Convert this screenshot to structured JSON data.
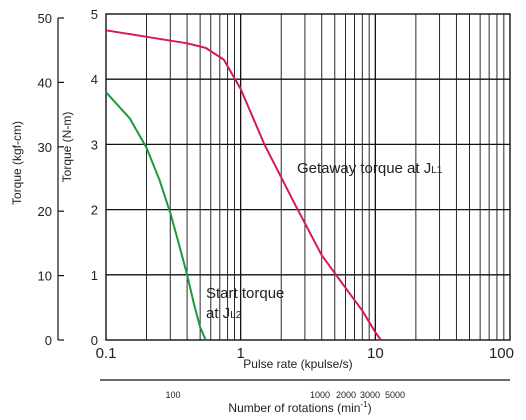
{
  "chart_data": {
    "type": "line",
    "xlabel": "Pulse rate (kpulse/s)",
    "x_scale": "log",
    "xlim": [
      0.1,
      100
    ],
    "x_ticks": [
      "0.1",
      "1",
      "10",
      "100"
    ],
    "ylabel_inner": "Torque (N-m)",
    "ylim_inner": [
      0,
      5
    ],
    "y_ticks_inner": [
      "0",
      "1",
      "2",
      "3",
      "4",
      "5"
    ],
    "ylabel_outer": "Torque (kgf-cm)",
    "ylim_outer": [
      0,
      50
    ],
    "y_ticks_outer": [
      "0",
      "10",
      "20",
      "30",
      "40",
      "50"
    ],
    "secondary_xlabel": {
      "text": "Number of rotations (min",
      "sup": "-1",
      "close": ")"
    },
    "secondary_x_ticks": [
      {
        "label": "100",
        "value": 100
      },
      {
        "label": "1000",
        "value": 1000
      },
      {
        "label": "2000",
        "value": 2000
      },
      {
        "label": "3000",
        "value": 3000
      },
      {
        "label": "5000",
        "value": 5000
      }
    ],
    "grid": true,
    "series": [
      {
        "color": "#d6195a",
        "annotation": {
          "text": "Getaway torque at J",
          "sub": "L1"
        },
        "x": [
          0.1,
          0.2,
          0.4,
          0.55,
          0.75,
          1.0,
          1.5,
          2.5,
          4.0,
          6.0,
          8.0,
          10.0,
          11.0
        ],
        "y": [
          4.75,
          4.65,
          4.55,
          4.48,
          4.3,
          3.85,
          3.0,
          2.1,
          1.3,
          0.8,
          0.45,
          0.12,
          0.0
        ]
      },
      {
        "color": "#1a9a3a",
        "annotation": {
          "text": "Start torque",
          "text2": "at J",
          "sub": "L2"
        },
        "x": [
          0.1,
          0.15,
          0.2,
          0.25,
          0.3,
          0.35,
          0.4,
          0.45,
          0.5,
          0.55
        ],
        "y": [
          3.8,
          3.4,
          2.95,
          2.45,
          1.95,
          1.45,
          1.0,
          0.55,
          0.2,
          0.0
        ]
      }
    ]
  }
}
